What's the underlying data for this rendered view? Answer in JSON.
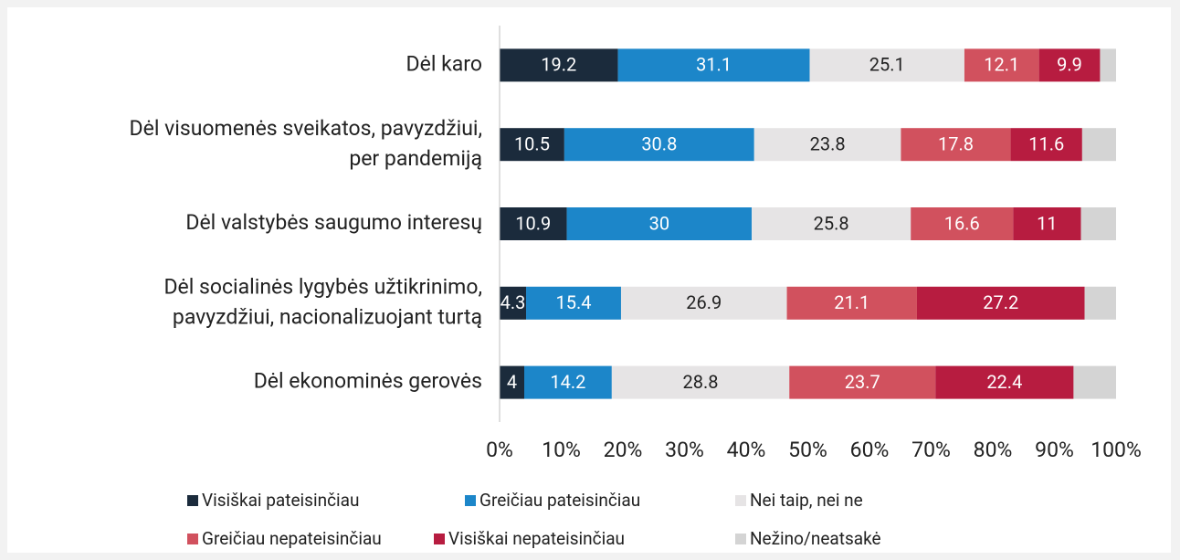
{
  "chart_data": {
    "type": "stacked_barh",
    "categories": [
      [
        "Dėl karo"
      ],
      [
        "Dėl visuomenės sveikatos, pavyzdžiui,",
        "per pandemiją"
      ],
      [
        "Dėl valstybės saugumo interesų"
      ],
      [
        "Dėl socialinės lygybės užtikrinimo,",
        "pavyzdžiui, nacionalizuojant turtą"
      ],
      [
        "Dėl ekonominės gerovės"
      ]
    ],
    "series": [
      {
        "name": "Visiškai pateisinčiau",
        "color": "#1b2b3c",
        "label_color": "#ffffff",
        "values": [
          19.2,
          10.5,
          10.9,
          4.3,
          4
        ]
      },
      {
        "name": "Greičiau pateisinčiau",
        "color": "#1c86c9",
        "label_color": "#ffffff",
        "values": [
          31.1,
          30.8,
          30,
          15.4,
          14.2
        ]
      },
      {
        "name": "Nei taip, nei ne",
        "color": "#e6e4e5",
        "label_color": "#222222",
        "values": [
          25.1,
          23.8,
          25.8,
          26.9,
          28.8
        ]
      },
      {
        "name": "Greičiau nepateisinčiau",
        "color": "#d1515e",
        "label_color": "#ffffff",
        "values": [
          12.1,
          17.8,
          16.6,
          21.1,
          23.7
        ]
      },
      {
        "name": "Visiškai nepateisinčiau",
        "color": "#b71c40",
        "label_color": "#ffffff",
        "values": [
          9.9,
          11.6,
          11,
          27.2,
          22.4
        ]
      },
      {
        "name": "Nežino/neatsakė",
        "color": "#d4d4d4",
        "show_values": false,
        "values": [
          2.6,
          5.5,
          5.7,
          5.1,
          6.9
        ]
      }
    ],
    "xlim": [
      0,
      100
    ],
    "xticks": [
      {
        "value": 0,
        "label": "0%"
      },
      {
        "value": 10,
        "label": "10%"
      },
      {
        "value": 20,
        "label": "20%"
      },
      {
        "value": 30,
        "label": "30%"
      },
      {
        "value": 40,
        "label": "40%"
      },
      {
        "value": 50,
        "label": "50%"
      },
      {
        "value": 60,
        "label": "60%"
      },
      {
        "value": 70,
        "label": "70%"
      },
      {
        "value": 80,
        "label": "80%"
      },
      {
        "value": 90,
        "label": "90%"
      },
      {
        "value": 100,
        "label": "100%"
      }
    ],
    "legend": "bottom"
  }
}
